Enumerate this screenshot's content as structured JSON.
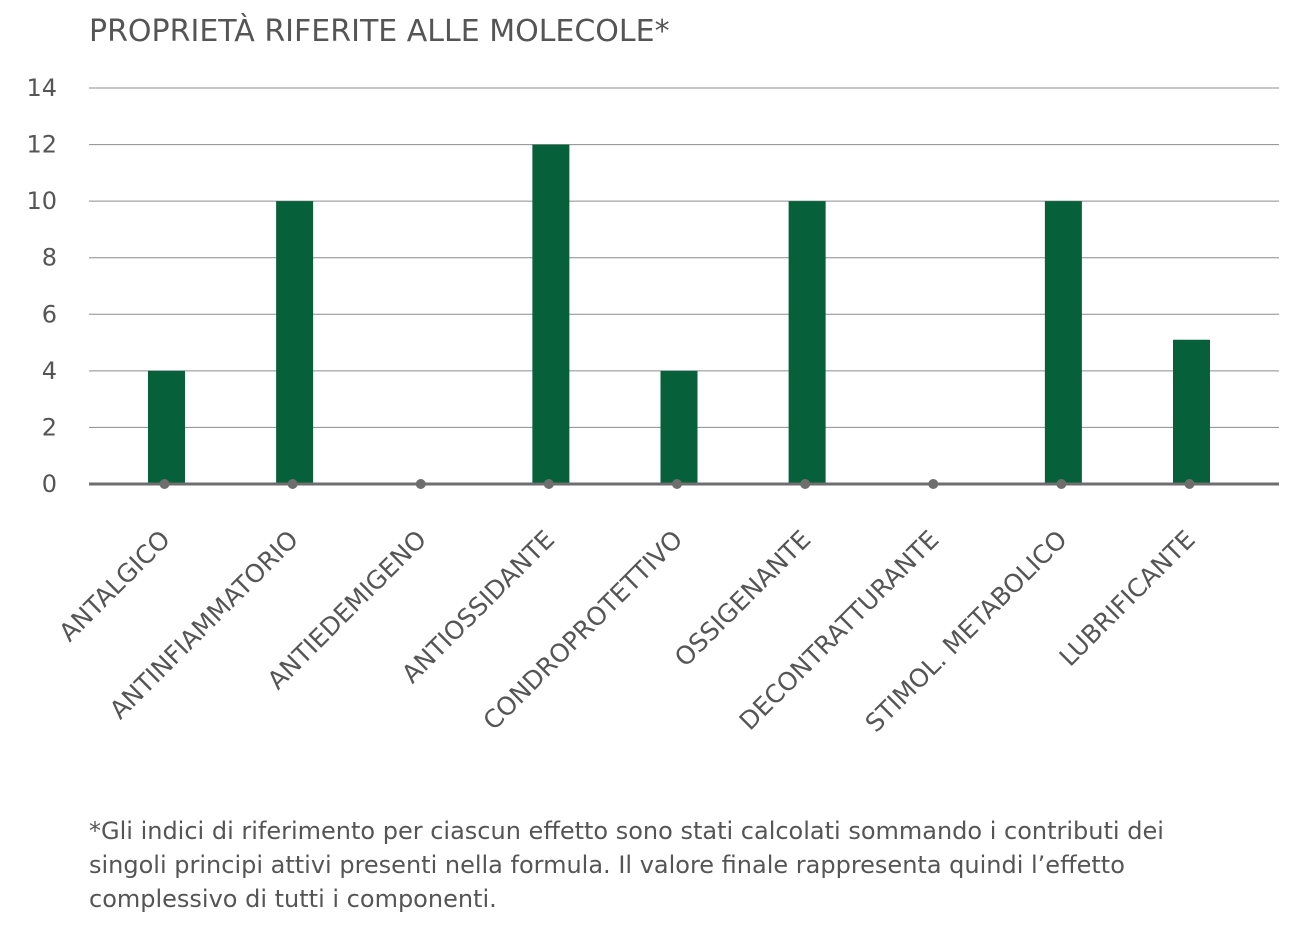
{
  "chart_data": {
    "type": "bar",
    "title": "PROPRIETÀ RIFERITE ALLE MOLECOLE*",
    "xlabel": "",
    "ylabel": "",
    "categories": [
      "ANTALGICO",
      "ANTINFIAMMATORIO",
      "ANTIEDEMIGENO",
      "ANTIOSSIDANTE",
      "CONDROPROTETTIVO",
      "OSSIGENANTE",
      "DECONTRATTURANTE",
      "STIMOL. METABOLICO",
      "LUBRIFICANTE"
    ],
    "values": [
      4,
      10,
      0,
      12,
      4,
      10,
      0,
      10,
      5.1
    ],
    "ylim": [
      0,
      14
    ],
    "yticks": [
      0,
      2,
      4,
      6,
      8,
      10,
      12,
      14
    ],
    "grid": true,
    "legend": "none",
    "colors": {
      "bar": "#06603a",
      "grid": "#8c8c8c",
      "axis": "#6e6e6e",
      "marker": "#6e6e6e",
      "text": "#555555"
    },
    "footnote": "*Gli indici di riferimento per ciascun effetto sono stati calcolati sommando i contributi dei singoli principi attivi presenti nella formula. Il valore finale rappresenta quindi l’effetto complessivo di tutti i componenti."
  }
}
